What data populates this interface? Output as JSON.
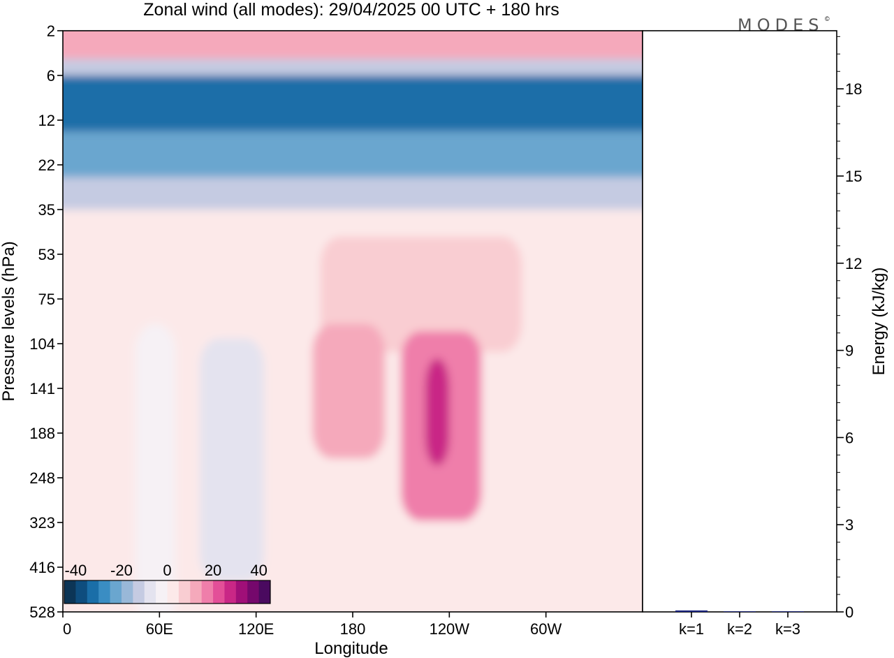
{
  "title": "Zonal wind (all modes):  29/04/2025  00 UTC  + 180 hrs",
  "logo": "MODES",
  "logo_mark": "©",
  "chart_data": [
    {
      "type": "heatmap",
      "variable": "Zonal wind (all modes)",
      "xlabel": "Longitude",
      "ylabel": "Pressure levels (hPa)",
      "x_ticks": [
        "0",
        "60E",
        "120E",
        "180",
        "120W",
        "60W"
      ],
      "x_range_deg_east": [
        0,
        360
      ],
      "y_ticks": [
        "2",
        "6",
        "12",
        "22",
        "35",
        "53",
        "75",
        "104",
        "141",
        "188",
        "248",
        "323",
        "416",
        "528"
      ],
      "y_order": "top-to-bottom",
      "colorbar": {
        "tick_labels": [
          "-40",
          "-20",
          "0",
          "20",
          "40"
        ],
        "range": [
          -45,
          45
        ],
        "step": 5,
        "colors": [
          "#0c3556",
          "#0e4d7e",
          "#1a6ea8",
          "#3a8dc3",
          "#6aa6cf",
          "#99b8d8",
          "#c5cbe2",
          "#e4e3ef",
          "#f6f1f5",
          "#fce9e9",
          "#f9cdd2",
          "#f5a9bb",
          "#ef7eaa",
          "#e34f98",
          "#c92786",
          "#a00f78",
          "#75086c",
          "#4a0a5f"
        ]
      },
      "regions": [
        {
          "p_top": 2,
          "p_bottom": 4,
          "value": 10
        },
        {
          "p_top": 4,
          "p_bottom": 6,
          "value": -12
        },
        {
          "p_top": 6,
          "p_bottom": 14,
          "value": -35
        },
        {
          "p_top": 14,
          "p_bottom": 25,
          "value": -25
        },
        {
          "p_top": 25,
          "p_bottom": 35,
          "value": -12
        },
        {
          "p_top": 35,
          "p_bottom": 528,
          "value": 3
        },
        {
          "lon_west": 160,
          "lon_east": 285,
          "p_top": 45,
          "p_bottom": 110,
          "value": 8
        },
        {
          "lon_west": 45,
          "lon_east": 70,
          "p_top": 90,
          "p_bottom": 528,
          "value": -5
        },
        {
          "lon_west": 85,
          "lon_east": 125,
          "p_top": 100,
          "p_bottom": 450,
          "value": -8
        },
        {
          "lon_west": 155,
          "lon_east": 200,
          "p_top": 90,
          "p_bottom": 220,
          "value": 13
        },
        {
          "lon_west": 210,
          "lon_east": 260,
          "p_top": 95,
          "p_bottom": 320,
          "value": 18
        },
        {
          "lon_west": 225,
          "lon_east": 240,
          "p_top": 115,
          "p_bottom": 230,
          "value": 25
        }
      ]
    },
    {
      "type": "bar",
      "categories": [
        "k=1",
        "k=2",
        "k=3"
      ],
      "values": [
        0.05,
        0.02,
        0.02
      ],
      "ylabel": "Energy (kJ/kg)",
      "ylim": [
        0,
        20
      ],
      "y_ticks": [
        0,
        3,
        6,
        9,
        12,
        15,
        18
      ],
      "y_minor_step": 0.6,
      "bar_color": "#1a237e"
    }
  ]
}
